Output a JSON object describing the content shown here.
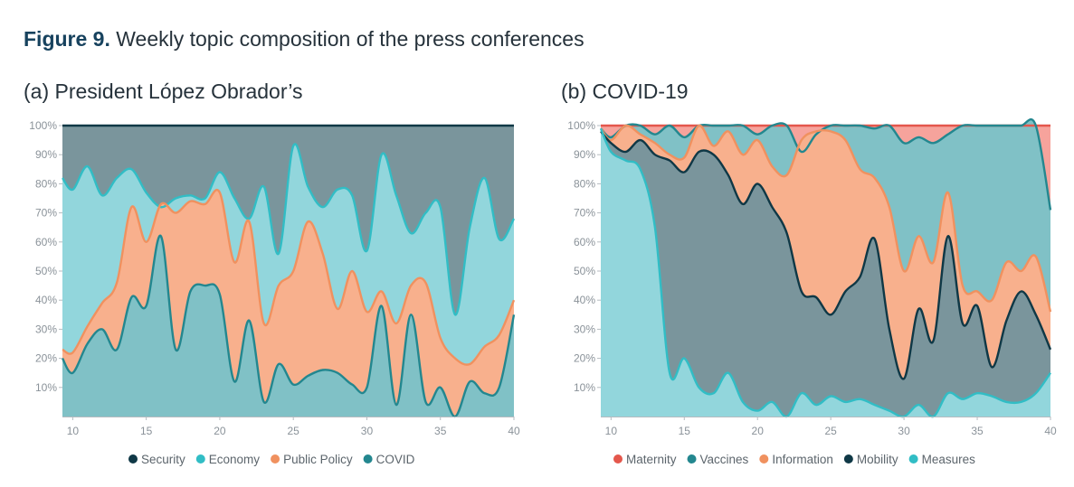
{
  "figure": {
    "label": "Figure 9.",
    "caption": " Weekly topic composition of the press conferences"
  },
  "chart_data": [
    {
      "type": "area",
      "title": "(a) President López Obrador’s",
      "xlabel": "",
      "ylabel": "",
      "xlim": [
        9.3,
        40
      ],
      "ylim": [
        0,
        100
      ],
      "xticks": [
        10,
        15,
        20,
        25,
        30,
        35,
        40
      ],
      "yticks": [
        10,
        20,
        30,
        40,
        50,
        60,
        70,
        80,
        90,
        100
      ],
      "ytick_labels": [
        "10%",
        "20%",
        "30%",
        "40%",
        "50%",
        "60%",
        "70%",
        "80%",
        "90%",
        "100%"
      ],
      "xtick_labels": [
        "10",
        "15",
        "20",
        "25",
        "30",
        "35",
        "40"
      ],
      "grid": false,
      "legend_position": "bottom",
      "x": [
        9.3,
        10,
        11,
        12,
        13,
        14,
        15,
        16,
        17,
        18,
        19,
        20,
        21,
        22,
        23,
        24,
        25,
        26,
        27,
        28,
        29,
        30,
        31,
        32,
        33,
        34,
        35,
        36,
        37,
        38,
        39,
        40
      ],
      "stack_order": [
        "COVID",
        "Public Policy",
        "Economy",
        "Security"
      ],
      "cumulative_bounds": {
        "COVID": [
          20,
          15,
          25,
          30,
          23,
          41,
          38,
          62,
          23,
          43,
          45,
          42,
          12,
          33,
          5,
          18,
          11,
          14,
          16,
          15,
          11,
          10,
          38,
          4,
          35,
          5,
          10,
          0,
          12,
          8,
          10,
          35
        ],
        "Public Policy": [
          23,
          22,
          31,
          39,
          46,
          72,
          60,
          73,
          70,
          74,
          73,
          77,
          53,
          67,
          32,
          45,
          50,
          67,
          56,
          37,
          50,
          36,
          43,
          32,
          45,
          46,
          27,
          20,
          18,
          24,
          28,
          40
        ],
        "Economy": [
          82,
          78,
          86,
          76,
          82,
          85,
          77,
          72,
          75,
          76,
          75,
          84,
          75,
          68,
          79,
          56,
          93,
          79,
          72,
          78,
          76,
          57,
          90,
          76,
          63,
          70,
          72,
          35,
          65,
          82,
          61,
          68
        ],
        "Security": [
          100,
          100,
          100,
          100,
          100,
          100,
          100,
          100,
          100,
          100,
          100,
          100,
          100,
          100,
          100,
          100,
          100,
          100,
          100,
          100,
          100,
          100,
          100,
          100,
          100,
          100,
          100,
          100,
          100,
          100,
          100,
          100
        ]
      },
      "legend": [
        {
          "name": "Security",
          "color": "#0f3846"
        },
        {
          "name": "Economy",
          "color": "#31bdc5"
        },
        {
          "name": "Public Policy",
          "color": "#f0915f"
        },
        {
          "name": "COVID",
          "color": "#23878f"
        }
      ],
      "fills": {
        "Security": "#7a959c",
        "Economy": "#92d6dc",
        "Public Policy": "#f8b08d",
        "COVID": "#80c1c6"
      },
      "lines": {
        "Security": "#0f3846",
        "Economy": "#31bdc5",
        "Public Policy": "#f0915f",
        "COVID": "#23878f"
      }
    },
    {
      "type": "area",
      "title": "(b) COVID-19",
      "xlabel": "",
      "ylabel": "",
      "xlim": [
        9.3,
        40
      ],
      "ylim": [
        0,
        100
      ],
      "xticks": [
        10,
        15,
        20,
        25,
        30,
        35,
        40
      ],
      "yticks": [
        10,
        20,
        30,
        40,
        50,
        60,
        70,
        80,
        90,
        100
      ],
      "ytick_labels": [
        "10%",
        "20%",
        "30%",
        "40%",
        "50%",
        "60%",
        "70%",
        "80%",
        "90%",
        "100%"
      ],
      "xtick_labels": [
        "10",
        "15",
        "20",
        "25",
        "30",
        "35",
        "40"
      ],
      "grid": false,
      "legend_position": "bottom",
      "x": [
        9.3,
        10,
        11,
        12,
        13,
        14,
        15,
        16,
        17,
        18,
        19,
        20,
        21,
        22,
        23,
        24,
        25,
        26,
        27,
        28,
        29,
        30,
        31,
        32,
        33,
        34,
        35,
        36,
        37,
        38,
        39,
        40
      ],
      "stack_order": [
        "Measures",
        "Mobility",
        "Information",
        "Vaccines",
        "Maternity"
      ],
      "cumulative_bounds": {
        "Measures": [
          99,
          91,
          88,
          85,
          65,
          15,
          20,
          10,
          8,
          15,
          5,
          2,
          5,
          0,
          8,
          4,
          7,
          5,
          6,
          4,
          2,
          0,
          4,
          0,
          8,
          6,
          8,
          7,
          5,
          5,
          8,
          15
        ],
        "Mobility": [
          98,
          94,
          91,
          95,
          90,
          88,
          84,
          91,
          90,
          83,
          73,
          80,
          72,
          63,
          43,
          41,
          35,
          43,
          48,
          61,
          30,
          13,
          37,
          26,
          62,
          32,
          38,
          17,
          33,
          43,
          35,
          23
        ],
        "Information": [
          99,
          95,
          100,
          97,
          94,
          90,
          89,
          100,
          93,
          98,
          90,
          95,
          86,
          83,
          95,
          98,
          98,
          95,
          85,
          82,
          72,
          50,
          62,
          53,
          77,
          45,
          43,
          40,
          53,
          50,
          55,
          36
        ],
        "Vaccines": [
          99,
          96,
          100,
          100,
          97,
          100,
          96,
          100,
          100,
          100,
          100,
          97,
          100,
          100,
          91,
          97,
          100,
          100,
          100,
          99,
          100,
          94,
          96,
          94,
          97,
          100,
          100,
          100,
          100,
          100,
          100,
          71
        ],
        "Maternity": [
          100,
          100,
          100,
          100,
          100,
          100,
          100,
          100,
          100,
          100,
          100,
          100,
          100,
          100,
          100,
          100,
          100,
          100,
          100,
          100,
          100,
          100,
          100,
          100,
          100,
          100,
          100,
          100,
          100,
          100,
          100,
          100
        ]
      },
      "legend": [
        {
          "name": "Maternity",
          "color": "#e4574c"
        },
        {
          "name": "Vaccines",
          "color": "#23878f"
        },
        {
          "name": "Information",
          "color": "#f0915f"
        },
        {
          "name": "Mobility",
          "color": "#0f3846"
        },
        {
          "name": "Measures",
          "color": "#31bdc5"
        }
      ],
      "fills": {
        "Maternity": "#f6a39c",
        "Vaccines": "#80c1c6",
        "Information": "#f8b08d",
        "Mobility": "#7a959c",
        "Measures": "#92d6dc"
      },
      "lines": {
        "Maternity": "#e4574c",
        "Vaccines": "#23878f",
        "Information": "#f0915f",
        "Mobility": "#0f3846",
        "Measures": "#31bdc5"
      }
    }
  ]
}
